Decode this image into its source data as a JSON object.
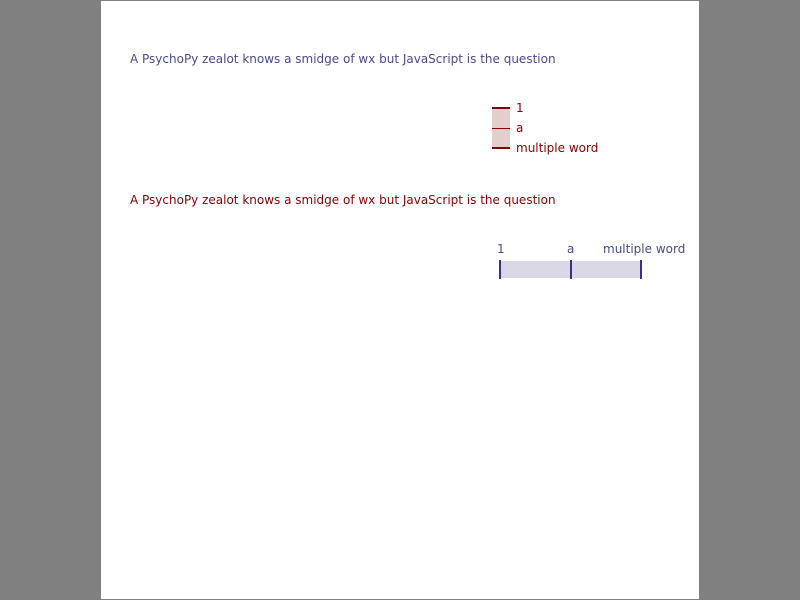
{
  "questions": [
    {
      "text": "A PsychoPy zealot knows a smidge of wx but JavaScript is the question"
    },
    {
      "text": "A PsychoPy zealot knows a smidge of wx but JavaScript is the question"
    }
  ],
  "vertical_slider": {
    "labels": [
      "1",
      "a",
      "multiple word"
    ]
  },
  "horizontal_slider": {
    "labels": [
      "1",
      "a",
      "multiple word"
    ]
  },
  "colors": {
    "background": "#808080",
    "page": "#ffffff",
    "purple_text": "#4b4a8f",
    "red_text": "#8b0000",
    "vertical_track": "#e3cece",
    "horizontal_track": "#d8d8e7",
    "horizontal_tick": "#3a2f8c"
  }
}
